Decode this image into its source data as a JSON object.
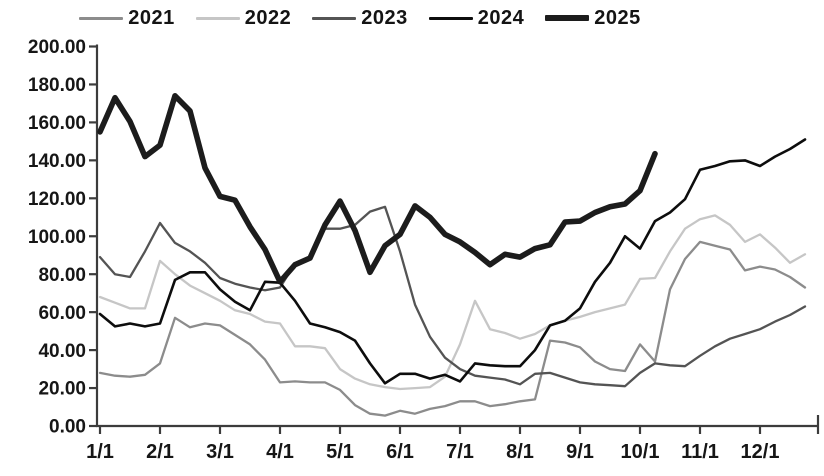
{
  "chart_data": {
    "type": "line",
    "title": "",
    "x": {
      "tick_labels": [
        "1/1",
        "2/1",
        "3/1",
        "4/1",
        "5/1",
        "6/1",
        "7/1",
        "8/1",
        "9/1",
        "10/1",
        "11/1",
        "12/1"
      ],
      "points_per_month": 4,
      "range_note": "weekly points, full calendar year"
    },
    "y": {
      "min": 0,
      "max": 200,
      "step": 20,
      "tick_labels": [
        "0.00",
        "20.00",
        "40.00",
        "60.00",
        "80.00",
        "100.00",
        "120.00",
        "140.00",
        "160.00",
        "180.00",
        "200.00"
      ]
    },
    "grid": false,
    "legend_position": "top",
    "axis_color": "#3c3c3c",
    "series": [
      {
        "name": "2021",
        "color": "#8c8c8c",
        "stroke_width": 2.3,
        "values": [
          28,
          26.5,
          26,
          27,
          33,
          57,
          52,
          54,
          53,
          48,
          43,
          35,
          23,
          23.5,
          23,
          23,
          19,
          11,
          6.5,
          5.5,
          8,
          6.5,
          9,
          10.5,
          13,
          13,
          10.5,
          11.5,
          13,
          14,
          45,
          44,
          41.5,
          34,
          30,
          29,
          43,
          34,
          72,
          88,
          97,
          95,
          93,
          82,
          84,
          82.5,
          78.5,
          73
        ]
      },
      {
        "name": "2022",
        "color": "#c6c6c6",
        "stroke_width": 2.3,
        "values": [
          68,
          65,
          62,
          62,
          87,
          80,
          74,
          70,
          66,
          61,
          59,
          55,
          54,
          42,
          42,
          41,
          30,
          25,
          22,
          20.5,
          19.5,
          20,
          20.5,
          26,
          43,
          66,
          51,
          49,
          46,
          48.5,
          53,
          55.5,
          57.5,
          60,
          62,
          64,
          77.5,
          78,
          92,
          104,
          109,
          111,
          106,
          97,
          101,
          94,
          86,
          90.5
        ]
      },
      {
        "name": "2023",
        "color": "#545454",
        "stroke_width": 2.3,
        "values": [
          89,
          80,
          78.5,
          92,
          107,
          96.5,
          92,
          86,
          78,
          75,
          73,
          71.5,
          73,
          85.5,
          88.5,
          104,
          104,
          106,
          113,
          115.5,
          92,
          64,
          47,
          36,
          30,
          26.5,
          25.5,
          24.5,
          22,
          27.5,
          28,
          25.5,
          23,
          22,
          21.5,
          21,
          28,
          33,
          32,
          31.5,
          37,
          42,
          46,
          48.5,
          51,
          55,
          58.5,
          63
        ]
      },
      {
        "name": "2024",
        "color": "#0d0d0d",
        "stroke_width": 2.6,
        "values": [
          59,
          52.5,
          54,
          52.5,
          54,
          77,
          81,
          81,
          72,
          65.5,
          61,
          76,
          75.5,
          66,
          54,
          52,
          49.5,
          45,
          33,
          22.5,
          27.5,
          27.5,
          25,
          27,
          23.5,
          33,
          32,
          31.5,
          31.5,
          40,
          53,
          55.5,
          62,
          76,
          86,
          100,
          93.5,
          108,
          112.5,
          119.5,
          135,
          137,
          139.5,
          140,
          137,
          142,
          146,
          151
        ]
      },
      {
        "name": "2025",
        "color": "#1c1c1c",
        "stroke_width": 5.6,
        "values": [
          155,
          173,
          160.5,
          142,
          148,
          174,
          166,
          136,
          121,
          119,
          105,
          93,
          76,
          85,
          88.5,
          106,
          118.5,
          103,
          81,
          95,
          101,
          116,
          110,
          101,
          97,
          91.5,
          85,
          90.5,
          89,
          93.5,
          95.5,
          107.5,
          108,
          112.5,
          115.5,
          117,
          124,
          143.5
        ]
      }
    ]
  }
}
